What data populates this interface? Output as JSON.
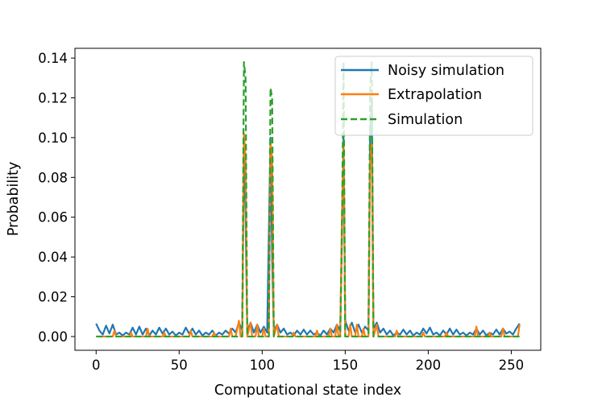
{
  "chart_data": {
    "type": "line",
    "xlabel": "Computational state index",
    "ylabel": "Probability",
    "xlim": [
      -12.75,
      267.75
    ],
    "ylim": [
      -0.0069,
      0.1449
    ],
    "x_ticks": [
      "0",
      "50",
      "100",
      "150",
      "200",
      "250"
    ],
    "y_ticks": [
      "0.00",
      "0.02",
      "0.04",
      "0.06",
      "0.08",
      "0.10",
      "0.12",
      "0.14"
    ],
    "grid": false,
    "legend_position": "top-right",
    "series": [
      {
        "name": "Noisy simulation",
        "color": "#1f77b4",
        "style": "solid",
        "points": [
          [
            0,
            0.0065
          ],
          [
            2,
            0.003
          ],
          [
            4,
            0.001
          ],
          [
            6,
            0.0055
          ],
          [
            8,
            0.0015
          ],
          [
            10,
            0.006
          ],
          [
            12,
            0.001
          ],
          [
            14,
            0.002
          ],
          [
            16,
            0.0005
          ],
          [
            18,
            0.002
          ],
          [
            20,
            0.001
          ],
          [
            22,
            0.0045
          ],
          [
            24,
            0.001
          ],
          [
            26,
            0.005
          ],
          [
            28,
            0.001
          ],
          [
            30,
            0.004
          ],
          [
            32,
            0.0005
          ],
          [
            34,
            0.003
          ],
          [
            36,
            0.001
          ],
          [
            38,
            0.0045
          ],
          [
            40,
            0.0015
          ],
          [
            42,
            0.004
          ],
          [
            44,
            0.001
          ],
          [
            46,
            0.0025
          ],
          [
            48,
            0.0005
          ],
          [
            50,
            0.002
          ],
          [
            52,
            0.001
          ],
          [
            54,
            0.0045
          ],
          [
            56,
            0.0015
          ],
          [
            58,
            0.004
          ],
          [
            60,
            0.001
          ],
          [
            62,
            0.003
          ],
          [
            64,
            0.0005
          ],
          [
            66,
            0.002
          ],
          [
            68,
            0.001
          ],
          [
            70,
            0.003
          ],
          [
            72,
            0.0005
          ],
          [
            74,
            0.002
          ],
          [
            76,
            0.001
          ],
          [
            78,
            0.003
          ],
          [
            80,
            0.0015
          ],
          [
            82,
            0.004
          ],
          [
            84,
            0.002
          ],
          [
            86,
            0.007
          ],
          [
            88,
            0.003
          ],
          [
            89,
            0.1
          ],
          [
            90,
            0.06
          ],
          [
            91,
            0.003
          ],
          [
            93,
            0.007
          ],
          [
            95,
            0.002
          ],
          [
            97,
            0.006
          ],
          [
            99,
            0.002
          ],
          [
            101,
            0.005
          ],
          [
            103,
            0.002
          ],
          [
            105,
            0.1
          ],
          [
            106,
            0.04
          ],
          [
            107,
            0.003
          ],
          [
            109,
            0.006
          ],
          [
            111,
            0.002
          ],
          [
            113,
            0.004
          ],
          [
            115,
            0.001
          ],
          [
            117,
            0.002
          ],
          [
            119,
            0.0005
          ],
          [
            121,
            0.003
          ],
          [
            123,
            0.001
          ],
          [
            125,
            0.0035
          ],
          [
            127,
            0.001
          ],
          [
            129,
            0.003
          ],
          [
            131,
            0.001
          ],
          [
            133,
            0.002
          ],
          [
            135,
            0.0005
          ],
          [
            137,
            0.003
          ],
          [
            139,
            0.001
          ],
          [
            141,
            0.004
          ],
          [
            143,
            0.002
          ],
          [
            145,
            0.006
          ],
          [
            147,
            0.003
          ],
          [
            148,
            0.05
          ],
          [
            149,
            0.1
          ],
          [
            150,
            0.008
          ],
          [
            152,
            0.003
          ],
          [
            154,
            0.007
          ],
          [
            156,
            0.002
          ],
          [
            158,
            0.006
          ],
          [
            160,
            0.002
          ],
          [
            162,
            0.005
          ],
          [
            164,
            0.003
          ],
          [
            165,
            0.1
          ],
          [
            166,
            0.12
          ],
          [
            167,
            0.004
          ],
          [
            169,
            0.007
          ],
          [
            171,
            0.002
          ],
          [
            173,
            0.004
          ],
          [
            175,
            0.001
          ],
          [
            177,
            0.003
          ],
          [
            179,
            0.0005
          ],
          [
            181,
            0.002
          ],
          [
            183,
            0.001
          ],
          [
            185,
            0.0035
          ],
          [
            187,
            0.001
          ],
          [
            189,
            0.003
          ],
          [
            191,
            0.0005
          ],
          [
            193,
            0.002
          ],
          [
            195,
            0.001
          ],
          [
            197,
            0.004
          ],
          [
            199,
            0.0015
          ],
          [
            201,
            0.0045
          ],
          [
            203,
            0.001
          ],
          [
            205,
            0.002
          ],
          [
            207,
            0.0005
          ],
          [
            209,
            0.003
          ],
          [
            211,
            0.001
          ],
          [
            213,
            0.004
          ],
          [
            215,
            0.001
          ],
          [
            217,
            0.0035
          ],
          [
            219,
            0.001
          ],
          [
            221,
            0.002
          ],
          [
            223,
            0.0005
          ],
          [
            225,
            0.002
          ],
          [
            227,
            0.001
          ],
          [
            229,
            0.004
          ],
          [
            231,
            0.001
          ],
          [
            233,
            0.003
          ],
          [
            235,
            0.0005
          ],
          [
            237,
            0.002
          ],
          [
            239,
            0.001
          ],
          [
            241,
            0.0035
          ],
          [
            243,
            0.001
          ],
          [
            245,
            0.004
          ],
          [
            247,
            0.0015
          ],
          [
            249,
            0.0025
          ],
          [
            251,
            0.001
          ],
          [
            253,
            0.004
          ],
          [
            255,
            0.0065
          ]
        ]
      },
      {
        "name": "Extrapolation",
        "color": "#ff7f0e",
        "style": "solid",
        "points": [
          [
            0,
            0.0
          ],
          [
            10,
            0.0
          ],
          [
            11,
            0.003
          ],
          [
            12,
            0.0
          ],
          [
            20,
            0.0
          ],
          [
            21,
            0.002
          ],
          [
            22,
            0.0
          ],
          [
            30,
            0.0
          ],
          [
            31,
            0.004
          ],
          [
            32,
            0.0
          ],
          [
            40,
            0.0
          ],
          [
            41,
            0.002
          ],
          [
            42,
            0.0
          ],
          [
            56,
            0.0
          ],
          [
            57,
            0.003
          ],
          [
            58,
            0.0
          ],
          [
            70,
            0.0
          ],
          [
            71,
            0.002
          ],
          [
            72,
            0.0
          ],
          [
            80,
            0.0
          ],
          [
            81,
            0.004
          ],
          [
            82,
            0.0
          ],
          [
            84,
            0.0
          ],
          [
            86,
            0.008
          ],
          [
            87,
            0.0
          ],
          [
            88,
            0.0
          ],
          [
            89,
            0.102
          ],
          [
            90,
            0.09
          ],
          [
            91,
            0.0
          ],
          [
            93,
            0.007
          ],
          [
            94,
            0.0
          ],
          [
            96,
            0.0
          ],
          [
            97,
            0.006
          ],
          [
            98,
            0.0
          ],
          [
            100,
            0.0
          ],
          [
            101,
            0.004
          ],
          [
            102,
            0.0
          ],
          [
            104,
            0.0
          ],
          [
            105,
            0.097
          ],
          [
            106,
            0.09
          ],
          [
            107,
            0.0
          ],
          [
            109,
            0.006
          ],
          [
            110,
            0.0
          ],
          [
            118,
            0.0
          ],
          [
            119,
            0.002
          ],
          [
            120,
            0.0
          ],
          [
            132,
            0.0
          ],
          [
            133,
            0.003
          ],
          [
            134,
            0.0
          ],
          [
            140,
            0.0
          ],
          [
            141,
            0.004
          ],
          [
            142,
            0.0
          ],
          [
            144,
            0.0
          ],
          [
            145,
            0.006
          ],
          [
            146,
            0.0
          ],
          [
            147,
            0.0
          ],
          [
            148,
            0.06
          ],
          [
            149,
            0.097
          ],
          [
            150,
            0.0
          ],
          [
            152,
            0.0
          ],
          [
            153,
            0.006
          ],
          [
            154,
            0.0
          ],
          [
            156,
            0.0
          ],
          [
            157,
            0.006
          ],
          [
            158,
            0.0
          ],
          [
            160,
            0.0
          ],
          [
            161,
            0.004
          ],
          [
            162,
            0.0
          ],
          [
            164,
            0.0
          ],
          [
            165,
            0.09
          ],
          [
            166,
            0.097
          ],
          [
            167,
            0.0
          ],
          [
            169,
            0.006
          ],
          [
            170,
            0.0
          ],
          [
            180,
            0.0
          ],
          [
            181,
            0.003
          ],
          [
            182,
            0.0
          ],
          [
            196,
            0.0
          ],
          [
            197,
            0.002
          ],
          [
            198,
            0.0
          ],
          [
            210,
            0.0
          ],
          [
            211,
            0.002
          ],
          [
            212,
            0.0
          ],
          [
            228,
            0.0
          ],
          [
            229,
            0.005
          ],
          [
            230,
            0.0
          ],
          [
            236,
            0.0
          ],
          [
            237,
            0.002
          ],
          [
            238,
            0.0
          ],
          [
            244,
            0.0
          ],
          [
            245,
            0.004
          ],
          [
            246,
            0.0
          ],
          [
            254,
            0.0
          ],
          [
            255,
            0.006
          ]
        ]
      },
      {
        "name": "Simulation",
        "color": "#2ca02c",
        "style": "dashed",
        "points": [
          [
            0,
            0.0
          ],
          [
            88,
            0.0
          ],
          [
            89,
            0.138
          ],
          [
            90,
            0.13
          ],
          [
            91,
            0.0
          ],
          [
            104,
            0.0
          ],
          [
            105,
            0.125
          ],
          [
            106,
            0.12
          ],
          [
            107,
            0.0
          ],
          [
            147,
            0.0
          ],
          [
            148,
            0.05
          ],
          [
            149,
            0.138
          ],
          [
            150,
            0.0
          ],
          [
            164,
            0.0
          ],
          [
            165,
            0.125
          ],
          [
            166,
            0.138
          ],
          [
            167,
            0.0
          ],
          [
            255,
            0.0
          ]
        ]
      }
    ]
  }
}
